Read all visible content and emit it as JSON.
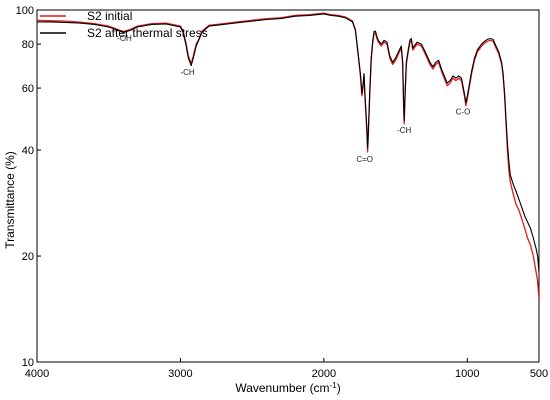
{
  "chart_data": {
    "type": "line",
    "xlabel": "Wavenumber (cm",
    "xlabel_sup": "-1",
    "xlabel_end": ")",
    "ylabel": "Transmittance (%)",
    "xlim": [
      4000,
      500
    ],
    "ylim": [
      10,
      100
    ],
    "xticks": [
      "4000",
      "3000",
      "2000",
      "1000",
      "500"
    ],
    "xtick_values": [
      4000,
      3000,
      2000,
      1000,
      500
    ],
    "yticks": [
      "100",
      "80",
      "60",
      "40",
      "20",
      "10"
    ],
    "ytick_values": [
      100,
      80,
      60,
      40,
      20,
      10
    ],
    "y_scale": "log",
    "grid": false,
    "legend_position": "top-left",
    "series": [
      {
        "name": "S2 initial",
        "color": "#e41a1c",
        "points": [
          [
            4000,
            93.5
          ],
          [
            3900,
            93.2
          ],
          [
            3800,
            93
          ],
          [
            3700,
            92.3
          ],
          [
            3600,
            91.5
          ],
          [
            3500,
            90
          ],
          [
            3450,
            88.5
          ],
          [
            3400,
            86.8
          ],
          [
            3350,
            88
          ],
          [
            3300,
            90
          ],
          [
            3200,
            91.5
          ],
          [
            3100,
            91.8
          ],
          [
            3000,
            90
          ],
          [
            2980,
            87
          ],
          [
            2960,
            80
          ],
          [
            2945,
            74
          ],
          [
            2925,
            70.5
          ],
          [
            2910,
            74
          ],
          [
            2890,
            80
          ],
          [
            2870,
            83
          ],
          [
            2850,
            87
          ],
          [
            2800,
            90.5
          ],
          [
            2700,
            91.5
          ],
          [
            2600,
            92.5
          ],
          [
            2500,
            93.5
          ],
          [
            2400,
            94.5
          ],
          [
            2300,
            95
          ],
          [
            2200,
            96.5
          ],
          [
            2100,
            97
          ],
          [
            2000,
            98
          ],
          [
            1950,
            97
          ],
          [
            1900,
            96.5
          ],
          [
            1850,
            95.5
          ],
          [
            1800,
            93
          ],
          [
            1780,
            88
          ],
          [
            1760,
            74
          ],
          [
            1745,
            65
          ],
          [
            1735,
            57
          ],
          [
            1728,
            60
          ],
          [
            1720,
            65
          ],
          [
            1712,
            55
          ],
          [
            1700,
            45
          ],
          [
            1695,
            39.5
          ],
          [
            1690,
            44
          ],
          [
            1680,
            58
          ],
          [
            1670,
            72
          ],
          [
            1660,
            80
          ],
          [
            1650,
            86
          ],
          [
            1640,
            86
          ],
          [
            1630,
            83
          ],
          [
            1620,
            81
          ],
          [
            1600,
            79
          ],
          [
            1580,
            81
          ],
          [
            1560,
            80
          ],
          [
            1540,
            73
          ],
          [
            1520,
            70
          ],
          [
            1500,
            72
          ],
          [
            1480,
            75
          ],
          [
            1460,
            78
          ],
          [
            1450,
            70
          ],
          [
            1445,
            55
          ],
          [
            1440,
            47.5
          ],
          [
            1435,
            55
          ],
          [
            1425,
            70
          ],
          [
            1410,
            77
          ],
          [
            1400,
            81
          ],
          [
            1390,
            82
          ],
          [
            1380,
            77
          ],
          [
            1370,
            78
          ],
          [
            1350,
            80
          ],
          [
            1320,
            79
          ],
          [
            1300,
            76
          ],
          [
            1280,
            73
          ],
          [
            1260,
            70
          ],
          [
            1240,
            68
          ],
          [
            1220,
            70
          ],
          [
            1200,
            71
          ],
          [
            1180,
            67
          ],
          [
            1160,
            64
          ],
          [
            1140,
            61
          ],
          [
            1120,
            62
          ],
          [
            1100,
            64
          ],
          [
            1080,
            63
          ],
          [
            1060,
            64
          ],
          [
            1040,
            63
          ],
          [
            1020,
            57
          ],
          [
            1010,
            53.5
          ],
          [
            1000,
            56
          ],
          [
            990,
            59
          ],
          [
            970,
            66
          ],
          [
            950,
            72
          ],
          [
            930,
            76
          ],
          [
            900,
            79
          ],
          [
            880,
            80.5
          ],
          [
            860,
            81.5
          ],
          [
            840,
            82
          ],
          [
            820,
            81.5
          ],
          [
            800,
            78
          ],
          [
            780,
            75
          ],
          [
            760,
            70
          ],
          [
            750,
            65
          ],
          [
            740,
            57
          ],
          [
            730,
            48
          ],
          [
            720,
            40
          ],
          [
            710,
            35
          ],
          [
            700,
            32.5
          ],
          [
            680,
            30
          ],
          [
            660,
            28
          ],
          [
            640,
            27
          ],
          [
            620,
            25.5
          ],
          [
            600,
            24
          ],
          [
            580,
            22.5
          ],
          [
            560,
            21.5
          ],
          [
            540,
            20
          ],
          [
            520,
            18
          ],
          [
            510,
            17
          ],
          [
            500,
            15
          ]
        ]
      },
      {
        "name": "S2 after thermal stress",
        "color": "#000000",
        "points": [
          [
            4000,
            92.5
          ],
          [
            3900,
            92.5
          ],
          [
            3800,
            92.2
          ],
          [
            3700,
            91.8
          ],
          [
            3600,
            91
          ],
          [
            3500,
            89.5
          ],
          [
            3450,
            88
          ],
          [
            3400,
            86.3
          ],
          [
            3350,
            87.5
          ],
          [
            3300,
            89.5
          ],
          [
            3200,
            91
          ],
          [
            3100,
            91.3
          ],
          [
            3000,
            89.5
          ],
          [
            2980,
            86
          ],
          [
            2960,
            79
          ],
          [
            2945,
            73
          ],
          [
            2925,
            69.5
          ],
          [
            2910,
            73
          ],
          [
            2890,
            79
          ],
          [
            2870,
            82.5
          ],
          [
            2850,
            86.5
          ],
          [
            2800,
            90
          ],
          [
            2700,
            91
          ],
          [
            2600,
            92
          ],
          [
            2500,
            93
          ],
          [
            2400,
            94
          ],
          [
            2300,
            94.5
          ],
          [
            2200,
            96
          ],
          [
            2100,
            96.5
          ],
          [
            2000,
            97.5
          ],
          [
            1950,
            96.5
          ],
          [
            1900,
            96
          ],
          [
            1850,
            95
          ],
          [
            1800,
            92.5
          ],
          [
            1780,
            87.5
          ],
          [
            1760,
            74.5
          ],
          [
            1745,
            66
          ],
          [
            1735,
            58
          ],
          [
            1728,
            61
          ],
          [
            1720,
            66
          ],
          [
            1712,
            56
          ],
          [
            1700,
            46
          ],
          [
            1695,
            40.5
          ],
          [
            1690,
            45
          ],
          [
            1680,
            59
          ],
          [
            1670,
            73
          ],
          [
            1660,
            81
          ],
          [
            1650,
            87
          ],
          [
            1640,
            87
          ],
          [
            1630,
            84
          ],
          [
            1620,
            82
          ],
          [
            1600,
            80
          ],
          [
            1580,
            82
          ],
          [
            1560,
            81
          ],
          [
            1540,
            74
          ],
          [
            1520,
            71
          ],
          [
            1500,
            73
          ],
          [
            1480,
            76
          ],
          [
            1460,
            79
          ],
          [
            1450,
            71
          ],
          [
            1445,
            56
          ],
          [
            1440,
            48.5
          ],
          [
            1435,
            56
          ],
          [
            1425,
            71
          ],
          [
            1410,
            78
          ],
          [
            1400,
            82
          ],
          [
            1390,
            83
          ],
          [
            1380,
            78
          ],
          [
            1370,
            79
          ],
          [
            1350,
            81
          ],
          [
            1320,
            80
          ],
          [
            1300,
            77
          ],
          [
            1280,
            74
          ],
          [
            1260,
            71
          ],
          [
            1240,
            69
          ],
          [
            1220,
            71
          ],
          [
            1200,
            72
          ],
          [
            1180,
            68
          ],
          [
            1160,
            65
          ],
          [
            1140,
            62
          ],
          [
            1120,
            63
          ],
          [
            1100,
            65
          ],
          [
            1080,
            64
          ],
          [
            1060,
            65
          ],
          [
            1040,
            64
          ],
          [
            1020,
            58
          ],
          [
            1010,
            54.5
          ],
          [
            1000,
            57
          ],
          [
            990,
            60
          ],
          [
            970,
            67
          ],
          [
            950,
            73
          ],
          [
            930,
            77
          ],
          [
            900,
            80
          ],
          [
            880,
            81.5
          ],
          [
            860,
            82.5
          ],
          [
            840,
            83
          ],
          [
            820,
            82.5
          ],
          [
            800,
            79
          ],
          [
            780,
            76
          ],
          [
            760,
            71
          ],
          [
            750,
            66
          ],
          [
            740,
            58
          ],
          [
            730,
            49
          ],
          [
            720,
            42
          ],
          [
            710,
            37
          ],
          [
            700,
            34
          ],
          [
            680,
            32
          ],
          [
            660,
            30.5
          ],
          [
            640,
            29
          ],
          [
            620,
            27.5
          ],
          [
            600,
            26
          ],
          [
            580,
            25
          ],
          [
            560,
            24
          ],
          [
            540,
            22.5
          ],
          [
            520,
            21
          ],
          [
            510,
            20
          ],
          [
            500,
            18
          ]
        ]
      }
    ],
    "annotations": [
      {
        "text": "-OH",
        "x": 3390,
        "y": 85
      },
      {
        "text": "-CH",
        "x": 2950,
        "y": 68
      },
      {
        "text": "C=O",
        "x": 1715,
        "y": 38.5
      },
      {
        "text": "-CH",
        "x": 1440,
        "y": 46.5
      },
      {
        "text": "C-O",
        "x": 1030,
        "y": 52.5
      }
    ]
  }
}
